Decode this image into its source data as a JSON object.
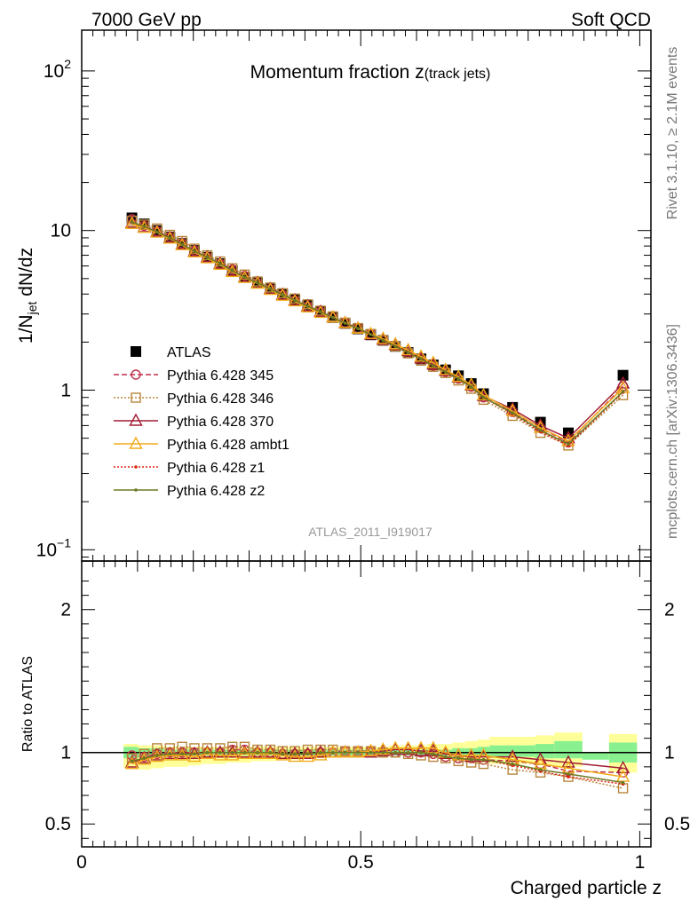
{
  "header": {
    "left": "7000 GeV pp",
    "right": "Soft QCD"
  },
  "side_labels": {
    "rivet": "Rivet 3.1.10, ≥ 2.1M events",
    "mcplots": "mcplots.cern.ch [arXiv:1306.3436]"
  },
  "analysis_tag": "ATLAS_2011_I919017",
  "chart_data": [
    {
      "type": "scatter",
      "title": "Momentum fraction z",
      "title_sub": "(track jets)",
      "ylabel_main": "1/N",
      "ylabel_sub": "jet",
      "ylabel_tail": " dN/dz",
      "yscale": "log",
      "ylim": [
        0.085,
        180
      ],
      "xlim": [
        0,
        1.02
      ],
      "yticks": [
        {
          "v": 0.1,
          "base": "10",
          "exp": "−1"
        },
        {
          "v": 1,
          "base": "1",
          "exp": ""
        },
        {
          "v": 10,
          "base": "10",
          "exp": ""
        },
        {
          "v": 100,
          "base": "10",
          "exp": "2"
        }
      ],
      "legend_placement": "middle-left",
      "x": [
        0.09,
        0.112,
        0.135,
        0.158,
        0.18,
        0.202,
        0.225,
        0.248,
        0.27,
        0.292,
        0.315,
        0.338,
        0.36,
        0.382,
        0.405,
        0.428,
        0.45,
        0.472,
        0.495,
        0.518,
        0.54,
        0.562,
        0.585,
        0.608,
        0.63,
        0.652,
        0.675,
        0.698,
        0.72,
        0.772,
        0.822,
        0.872,
        0.97
      ],
      "series": [
        {
          "name": "ATLAS",
          "color": "#000000",
          "marker": "filled-square",
          "line": "none",
          "values": [
            12.0,
            11.0,
            10.0,
            9.1,
            8.3,
            7.5,
            6.8,
            6.2,
            5.6,
            5.1,
            4.7,
            4.3,
            4.0,
            3.7,
            3.4,
            3.1,
            2.85,
            2.62,
            2.42,
            2.22,
            2.05,
            1.88,
            1.72,
            1.57,
            1.44,
            1.34,
            1.23,
            1.1,
            0.95,
            0.78,
            0.63,
            0.54,
            1.24
          ]
        },
        {
          "name": "Pythia 6.428 345",
          "color": "#c0304a",
          "marker": "open-circle",
          "line": "dashed",
          "values": [
            11.8,
            10.7,
            9.9,
            9.1,
            8.3,
            7.5,
            6.8,
            6.2,
            5.7,
            5.2,
            4.7,
            4.3,
            3.95,
            3.65,
            3.35,
            3.1,
            2.85,
            2.65,
            2.45,
            2.25,
            2.05,
            1.88,
            1.72,
            1.57,
            1.42,
            1.3,
            1.18,
            1.05,
            0.9,
            0.73,
            0.58,
            0.47,
            1.06
          ]
        },
        {
          "name": "Pythia 6.428 346",
          "color": "#b8863b",
          "marker": "open-square",
          "line": "dotted",
          "values": [
            11.5,
            10.9,
            10.3,
            9.4,
            8.6,
            7.7,
            7.0,
            6.4,
            5.8,
            5.3,
            4.8,
            4.4,
            4.05,
            3.75,
            3.45,
            3.15,
            2.9,
            2.65,
            2.45,
            2.25,
            2.05,
            1.88,
            1.7,
            1.53,
            1.4,
            1.28,
            1.15,
            1.02,
            0.87,
            0.69,
            0.54,
            0.45,
            0.93
          ]
        },
        {
          "name": "Pythia 6.428 370",
          "color": "#a01c34",
          "marker": "open-triangle",
          "line": "solid",
          "values": [
            11.2,
            10.5,
            9.8,
            9.0,
            8.2,
            7.4,
            6.8,
            6.2,
            5.6,
            5.1,
            4.7,
            4.3,
            3.95,
            3.65,
            3.35,
            3.1,
            2.85,
            2.63,
            2.43,
            2.23,
            2.07,
            1.92,
            1.76,
            1.58,
            1.45,
            1.32,
            1.2,
            1.07,
            0.92,
            0.76,
            0.6,
            0.5,
            1.1
          ]
        },
        {
          "name": "Pythia 6.428 ambt1",
          "color": "#f2aa1a",
          "marker": "open-triangle",
          "line": "solid",
          "values": [
            11.0,
            10.4,
            9.7,
            8.9,
            8.1,
            7.3,
            6.7,
            6.1,
            5.5,
            5.05,
            4.65,
            4.25,
            3.9,
            3.6,
            3.3,
            3.05,
            2.85,
            2.63,
            2.43,
            2.25,
            2.1,
            1.94,
            1.78,
            1.62,
            1.48,
            1.34,
            1.21,
            1.08,
            0.93,
            0.74,
            0.58,
            0.48,
            1.03
          ]
        },
        {
          "name": "Pythia 6.428 z1",
          "color": "#dd2211",
          "marker": "dot",
          "line": "dotted",
          "values": [
            11.3,
            10.6,
            9.8,
            9.0,
            8.2,
            7.4,
            6.8,
            6.2,
            5.6,
            5.1,
            4.7,
            4.3,
            3.95,
            3.65,
            3.35,
            3.1,
            2.85,
            2.63,
            2.43,
            2.23,
            2.05,
            1.88,
            1.72,
            1.57,
            1.42,
            1.3,
            1.18,
            1.05,
            0.9,
            0.71,
            0.55,
            0.45,
            0.97
          ]
        },
        {
          "name": "Pythia 6.428 z2",
          "color": "#6b7a24",
          "marker": "dot",
          "line": "solid",
          "values": [
            11.3,
            10.6,
            9.8,
            9.0,
            8.2,
            7.4,
            6.8,
            6.2,
            5.6,
            5.1,
            4.7,
            4.3,
            3.95,
            3.65,
            3.35,
            3.1,
            2.85,
            2.63,
            2.43,
            2.23,
            2.05,
            1.88,
            1.72,
            1.57,
            1.42,
            1.3,
            1.18,
            1.05,
            0.9,
            0.72,
            0.56,
            0.46,
            0.98
          ]
        }
      ]
    },
    {
      "type": "scatter",
      "ylabel": "Ratio to ATLAS",
      "xlabel": "Charged particle z",
      "ylim": [
        0.34,
        2.34
      ],
      "xlim": [
        0,
        1.02
      ],
      "yticks": [
        {
          "v": 0.5,
          "label": "0.5"
        },
        {
          "v": 1,
          "label": "1"
        },
        {
          "v": 2,
          "label": "2"
        }
      ],
      "xticks": [
        {
          "v": 0,
          "label": "0"
        },
        {
          "v": 0.5,
          "label": "0.5"
        },
        {
          "v": 1,
          "label": "1"
        }
      ],
      "reference_line": 1,
      "bands": {
        "x_edges": [
          0.075,
          0.101,
          0.124,
          0.147,
          0.169,
          0.191,
          0.214,
          0.237,
          0.259,
          0.281,
          0.304,
          0.327,
          0.349,
          0.371,
          0.394,
          0.417,
          0.439,
          0.461,
          0.484,
          0.507,
          0.529,
          0.551,
          0.574,
          0.597,
          0.619,
          0.641,
          0.664,
          0.687,
          0.709,
          0.731,
          0.813,
          0.847,
          0.897,
          0.945,
          0.995
        ],
        "inner_color": "#88f08e",
        "outer_color": "#ffff99",
        "inner_low": [
          0.96,
          0.97,
          0.97,
          0.98,
          0.98,
          0.98,
          0.98,
          0.98,
          0.98,
          0.98,
          0.98,
          0.98,
          0.98,
          0.98,
          0.98,
          0.98,
          0.98,
          0.98,
          0.98,
          0.98,
          0.98,
          0.98,
          0.98,
          0.98,
          0.98,
          0.98,
          0.98,
          0.98,
          0.97,
          0.97,
          0.96,
          0.96,
          0.95,
          0.93
        ],
        "inner_high": [
          1.04,
          1.03,
          1.03,
          1.02,
          1.02,
          1.02,
          1.02,
          1.02,
          1.02,
          1.02,
          1.02,
          1.02,
          1.02,
          1.02,
          1.02,
          1.02,
          1.02,
          1.02,
          1.02,
          1.02,
          1.02,
          1.02,
          1.02,
          1.02,
          1.02,
          1.02,
          1.03,
          1.03,
          1.04,
          1.05,
          1.06,
          1.08,
          1.0,
          1.07
        ],
        "outer_low": [
          0.89,
          0.88,
          0.89,
          0.9,
          0.9,
          0.91,
          0.92,
          0.92,
          0.93,
          0.93,
          0.94,
          0.94,
          0.95,
          0.95,
          0.96,
          0.96,
          0.97,
          0.97,
          0.97,
          0.98,
          0.98,
          0.98,
          0.98,
          0.98,
          0.97,
          0.96,
          0.95,
          0.94,
          0.93,
          0.92,
          0.91,
          0.9,
          1.0,
          0.86
        ],
        "outer_high": [
          1.06,
          1.05,
          1.05,
          1.04,
          1.04,
          1.04,
          1.04,
          1.04,
          1.04,
          1.04,
          1.04,
          1.04,
          1.04,
          1.04,
          1.04,
          1.04,
          1.04,
          1.04,
          1.04,
          1.04,
          1.04,
          1.05,
          1.05,
          1.05,
          1.06,
          1.06,
          1.07,
          1.08,
          1.09,
          1.11,
          1.12,
          1.14,
          1.0,
          1.13
        ]
      },
      "series": [
        {
          "name": "Pythia 6.428 345",
          "color": "#c0304a",
          "marker": "open-circle",
          "line": "dashed",
          "values": [
            0.98,
            0.97,
            0.99,
            1.0,
            1.0,
            1.0,
            1.0,
            1.0,
            1.02,
            1.02,
            1.0,
            1.0,
            0.99,
            0.99,
            0.99,
            1.0,
            1.0,
            1.01,
            1.01,
            1.01,
            1.0,
            1.0,
            1.0,
            1.0,
            0.99,
            0.97,
            0.96,
            0.96,
            0.95,
            0.94,
            0.92,
            0.87,
            0.86
          ]
        },
        {
          "name": "Pythia 6.428 346",
          "color": "#b8863b",
          "marker": "open-square",
          "line": "dotted",
          "values": [
            0.96,
            0.99,
            1.03,
            1.03,
            1.04,
            1.03,
            1.03,
            1.03,
            1.04,
            1.04,
            1.02,
            1.02,
            1.01,
            1.01,
            1.02,
            1.02,
            1.02,
            1.01,
            1.01,
            1.01,
            1.0,
            1.0,
            0.99,
            0.98,
            0.97,
            0.96,
            0.94,
            0.93,
            0.92,
            0.88,
            0.86,
            0.83,
            0.75
          ]
        },
        {
          "name": "Pythia 6.428 370",
          "color": "#a01c34",
          "marker": "open-triangle",
          "line": "solid",
          "values": [
            0.93,
            0.96,
            0.98,
            0.99,
            0.99,
            0.99,
            1.0,
            1.0,
            1.0,
            1.0,
            1.0,
            1.0,
            0.99,
            0.99,
            0.99,
            1.0,
            1.0,
            1.0,
            1.0,
            1.0,
            1.01,
            1.02,
            1.02,
            1.01,
            1.01,
            0.99,
            0.98,
            0.97,
            0.97,
            0.97,
            0.95,
            0.93,
            0.89
          ]
        },
        {
          "name": "Pythia 6.428 ambt1",
          "color": "#f2aa1a",
          "marker": "open-triangle",
          "line": "solid",
          "values": [
            0.92,
            0.95,
            0.97,
            0.98,
            0.98,
            0.97,
            0.99,
            0.98,
            0.98,
            0.99,
            0.99,
            0.99,
            0.98,
            0.97,
            0.97,
            0.98,
            1.0,
            1.0,
            1.0,
            1.01,
            1.02,
            1.03,
            1.03,
            1.03,
            1.03,
            1.0,
            0.98,
            0.98,
            0.98,
            0.95,
            0.92,
            0.89,
            0.83
          ]
        },
        {
          "name": "Pythia 6.428 z1",
          "color": "#dd2211",
          "marker": "dot",
          "line": "dotted",
          "values": [
            0.94,
            0.96,
            0.98,
            0.99,
            0.99,
            0.99,
            1.0,
            1.0,
            1.0,
            1.0,
            1.0,
            1.0,
            0.99,
            0.99,
            0.99,
            1.0,
            1.0,
            1.0,
            1.0,
            1.0,
            1.0,
            1.0,
            1.0,
            1.0,
            0.99,
            0.97,
            0.96,
            0.95,
            0.95,
            0.91,
            0.87,
            0.83,
            0.78
          ]
        },
        {
          "name": "Pythia 6.428 z2",
          "color": "#6b7a24",
          "marker": "dot",
          "line": "solid",
          "values": [
            0.94,
            0.96,
            0.98,
            0.99,
            0.99,
            0.99,
            1.0,
            1.0,
            1.0,
            1.0,
            1.0,
            1.0,
            0.99,
            0.99,
            0.99,
            1.0,
            1.0,
            1.0,
            1.0,
            1.0,
            1.0,
            1.0,
            1.0,
            1.0,
            0.99,
            0.97,
            0.96,
            0.95,
            0.95,
            0.92,
            0.88,
            0.85,
            0.79
          ]
        }
      ]
    }
  ]
}
